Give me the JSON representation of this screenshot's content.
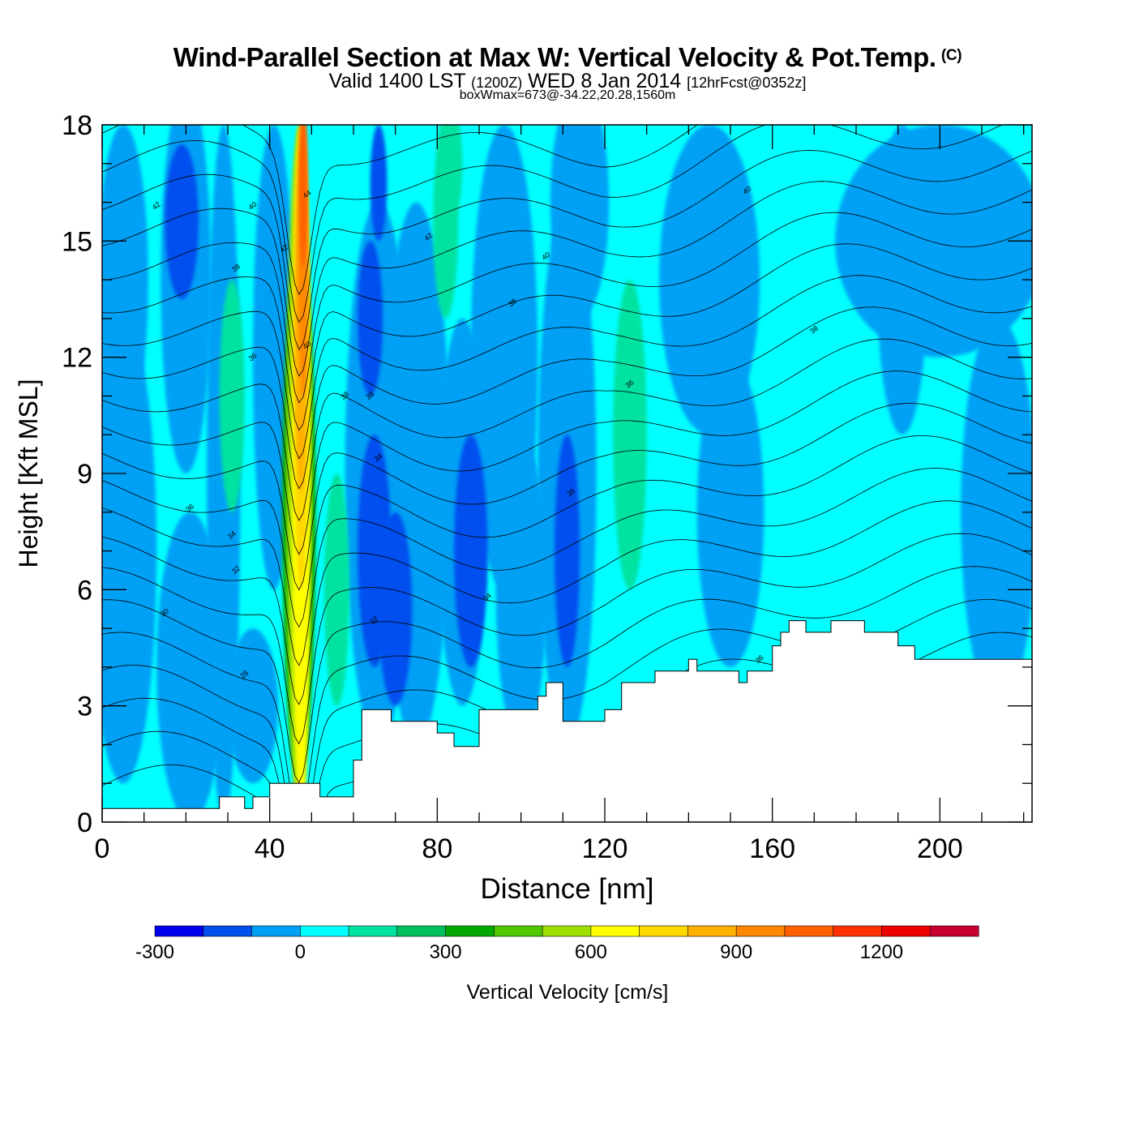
{
  "header": {
    "title": "Wind-Parallel Section at Max W: Vertical Velocity & Pot.Temp.",
    "copyright": "(C)",
    "valid_prefix": "Valid 1400 LST",
    "valid_utc": "(1200Z)",
    "valid_date": "WED 8 Jan 2014",
    "forecast": "[12hrFcst@0352z]",
    "box_info": "boxWmax=673@-34.22,20.28,1560m"
  },
  "chart_data": {
    "type": "heatmap",
    "title": "Wind-Parallel Section at Max W: Vertical Velocity & Pot.Temp.",
    "xlabel": "Distance [nm]",
    "ylabel": "Height [Kft MSL]",
    "xlim": [
      0,
      222
    ],
    "ylim": [
      0,
      18
    ],
    "x_ticks": [
      0,
      40,
      80,
      120,
      160,
      200
    ],
    "y_ticks": [
      0,
      3,
      6,
      9,
      12,
      15,
      18
    ],
    "colorbar": {
      "label": "Vertical Velocity [cm/s]",
      "placement": "bottom",
      "tick_labels": [
        -300,
        0,
        300,
        600,
        900,
        1200
      ],
      "bounds": [
        -300,
        -200,
        -100,
        0,
        100,
        200,
        300,
        400,
        500,
        600,
        700,
        800,
        900,
        1000,
        1100,
        1200,
        1300,
        1400
      ],
      "colors": [
        "#0000ee",
        "#0050ee",
        "#00a0f5",
        "#00ffff",
        "#00e2a0",
        "#00c060",
        "#00a800",
        "#50c800",
        "#a0e000",
        "#ffff00",
        "#ffd800",
        "#ffb000",
        "#ff8800",
        "#ff6000",
        "#ff3000",
        "#ee0000",
        "#c80032"
      ]
    },
    "contour_field": "Potential temperature",
    "contour_labels": [
      {
        "x": 13,
        "y": 15.9,
        "text": "42"
      },
      {
        "x": 36,
        "y": 15.9,
        "text": "40"
      },
      {
        "x": 43.5,
        "y": 14.8,
        "text": "42"
      },
      {
        "x": 49,
        "y": 16.2,
        "text": "44"
      },
      {
        "x": 32,
        "y": 14.3,
        "text": "38"
      },
      {
        "x": 36,
        "y": 12.0,
        "text": "36"
      },
      {
        "x": 49,
        "y": 12.3,
        "text": "40"
      },
      {
        "x": 58,
        "y": 11.0,
        "text": "38"
      },
      {
        "x": 64,
        "y": 11.0,
        "text": "38"
      },
      {
        "x": 66,
        "y": 9.4,
        "text": "34"
      },
      {
        "x": 78,
        "y": 15.1,
        "text": "42"
      },
      {
        "x": 106,
        "y": 14.6,
        "text": "40"
      },
      {
        "x": 98,
        "y": 13.4,
        "text": "38"
      },
      {
        "x": 126,
        "y": 11.3,
        "text": "36"
      },
      {
        "x": 112,
        "y": 8.5,
        "text": "36"
      },
      {
        "x": 154,
        "y": 16.3,
        "text": "40"
      },
      {
        "x": 170,
        "y": 12.7,
        "text": "38"
      },
      {
        "x": 21,
        "y": 8.1,
        "text": "36"
      },
      {
        "x": 31,
        "y": 7.4,
        "text": "34"
      },
      {
        "x": 32,
        "y": 6.5,
        "text": "32"
      },
      {
        "x": 15,
        "y": 5.4,
        "text": "30"
      },
      {
        "x": 34,
        "y": 3.8,
        "text": "28"
      },
      {
        "x": 65,
        "y": 5.2,
        "text": "32"
      },
      {
        "x": 92,
        "y": 5.8,
        "text": "34"
      },
      {
        "x": 157,
        "y": 4.2,
        "text": "36"
      }
    ],
    "terrain_profile": {
      "x": [
        0,
        28,
        28,
        34,
        34,
        36,
        36,
        40,
        40,
        52,
        52,
        60,
        60,
        62,
        62,
        69,
        69,
        80,
        80,
        84,
        84,
        90,
        90,
        104,
        104,
        106,
        106,
        110,
        110,
        116,
        116,
        120,
        120,
        124,
        124,
        132,
        132,
        140,
        140,
        142,
        142,
        152,
        152,
        154,
        154,
        160,
        160,
        162,
        162,
        164,
        164,
        168,
        168,
        174,
        174,
        176,
        176,
        182,
        182,
        190,
        190,
        194,
        194,
        200,
        200,
        222
      ],
      "y": [
        0.35,
        0.35,
        0.65,
        0.65,
        0.35,
        0.35,
        0.65,
        0.65,
        1.0,
        1.0,
        0.65,
        0.65,
        1.6,
        1.6,
        2.9,
        2.9,
        2.6,
        2.6,
        2.3,
        2.3,
        1.95,
        1.95,
        2.9,
        2.9,
        3.25,
        3.25,
        3.6,
        3.6,
        2.6,
        2.6,
        2.6,
        2.6,
        2.9,
        2.9,
        3.6,
        3.6,
        3.9,
        3.9,
        4.2,
        4.2,
        3.9,
        3.9,
        3.6,
        3.6,
        3.9,
        3.9,
        4.55,
        4.55,
        4.9,
        4.9,
        5.2,
        5.2,
        4.9,
        4.9,
        5.2,
        5.2,
        5.2,
        5.2,
        4.9,
        4.9,
        4.55,
        4.55,
        4.2,
        4.2,
        4.2,
        4.2
      ]
    },
    "grid": false
  }
}
